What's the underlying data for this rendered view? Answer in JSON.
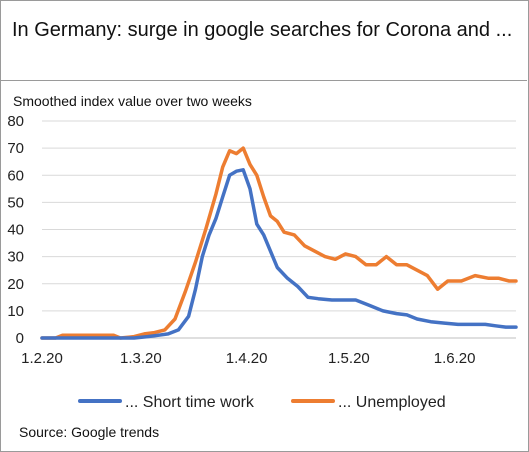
{
  "title": "In Germany: surge in google searches for Corona and ...",
  "source": "Source: Google trends",
  "chart_data": {
    "type": "line",
    "title": "In Germany: surge in google searches for Corona and ...",
    "subtitle": "Smoothed index value over two weeks",
    "xlabel": "",
    "ylabel": "",
    "ylim": [
      0,
      80
    ],
    "yticks": [
      0,
      10,
      20,
      30,
      40,
      50,
      60,
      70,
      80
    ],
    "xlim": [
      "2020-02-01",
      "2020-06-19"
    ],
    "xticks": [
      {
        "label": "1.2.20",
        "date": "2020-02-01"
      },
      {
        "label": "1.3.20",
        "date": "2020-03-01"
      },
      {
        "label": "1.4.20",
        "date": "2020-04-01"
      },
      {
        "label": "1.5.20",
        "date": "2020-05-01"
      },
      {
        "label": "1.6.20",
        "date": "2020-06-01"
      }
    ],
    "grid": true,
    "legend_position": "bottom",
    "series": [
      {
        "name": "... Short time work",
        "color": "#4472c4",
        "points": [
          [
            "2020-02-01",
            0
          ],
          [
            "2020-02-10",
            0
          ],
          [
            "2020-02-20",
            0
          ],
          [
            "2020-02-28",
            0
          ],
          [
            "2020-03-03",
            0.5
          ],
          [
            "2020-03-06",
            1
          ],
          [
            "2020-03-09",
            1.5
          ],
          [
            "2020-03-12",
            3
          ],
          [
            "2020-03-15",
            8
          ],
          [
            "2020-03-17",
            18
          ],
          [
            "2020-03-19",
            30
          ],
          [
            "2020-03-21",
            38
          ],
          [
            "2020-03-23",
            44
          ],
          [
            "2020-03-25",
            52
          ],
          [
            "2020-03-27",
            60
          ],
          [
            "2020-03-29",
            61.5
          ],
          [
            "2020-03-31",
            62
          ],
          [
            "2020-04-02",
            55
          ],
          [
            "2020-04-04",
            42
          ],
          [
            "2020-04-06",
            38
          ],
          [
            "2020-04-08",
            32
          ],
          [
            "2020-04-10",
            26
          ],
          [
            "2020-04-13",
            22
          ],
          [
            "2020-04-16",
            19
          ],
          [
            "2020-04-19",
            15
          ],
          [
            "2020-04-22",
            14.5
          ],
          [
            "2020-04-26",
            14
          ],
          [
            "2020-04-30",
            14
          ],
          [
            "2020-05-03",
            14
          ],
          [
            "2020-05-07",
            12
          ],
          [
            "2020-05-11",
            10
          ],
          [
            "2020-05-15",
            9
          ],
          [
            "2020-05-18",
            8.5
          ],
          [
            "2020-05-21",
            7
          ],
          [
            "2020-05-25",
            6
          ],
          [
            "2020-05-29",
            5.5
          ],
          [
            "2020-06-02",
            5
          ],
          [
            "2020-06-06",
            5
          ],
          [
            "2020-06-10",
            5
          ],
          [
            "2020-06-13",
            4.5
          ],
          [
            "2020-06-16",
            4
          ],
          [
            "2020-06-19",
            4
          ]
        ]
      },
      {
        "name": "... Unemployed",
        "color": "#ed7d31",
        "points": [
          [
            "2020-02-01",
            0
          ],
          [
            "2020-02-05",
            0
          ],
          [
            "2020-02-07",
            1
          ],
          [
            "2020-02-12",
            1
          ],
          [
            "2020-02-17",
            1
          ],
          [
            "2020-02-22",
            1
          ],
          [
            "2020-02-24",
            0
          ],
          [
            "2020-02-28",
            0.5
          ],
          [
            "2020-03-02",
            1.5
          ],
          [
            "2020-03-05",
            2
          ],
          [
            "2020-03-08",
            3
          ],
          [
            "2020-03-11",
            7
          ],
          [
            "2020-03-14",
            17
          ],
          [
            "2020-03-17",
            28
          ],
          [
            "2020-03-20",
            40
          ],
          [
            "2020-03-23",
            53
          ],
          [
            "2020-03-25",
            63
          ],
          [
            "2020-03-27",
            69
          ],
          [
            "2020-03-29",
            68
          ],
          [
            "2020-03-31",
            70
          ],
          [
            "2020-04-02",
            64
          ],
          [
            "2020-04-04",
            60
          ],
          [
            "2020-04-06",
            52
          ],
          [
            "2020-04-08",
            45
          ],
          [
            "2020-04-10",
            43
          ],
          [
            "2020-04-12",
            39
          ],
          [
            "2020-04-15",
            38
          ],
          [
            "2020-04-18",
            34
          ],
          [
            "2020-04-21",
            32
          ],
          [
            "2020-04-24",
            30
          ],
          [
            "2020-04-27",
            29
          ],
          [
            "2020-04-30",
            31
          ],
          [
            "2020-05-03",
            30
          ],
          [
            "2020-05-06",
            27
          ],
          [
            "2020-05-09",
            27
          ],
          [
            "2020-05-12",
            30
          ],
          [
            "2020-05-15",
            27
          ],
          [
            "2020-05-18",
            27
          ],
          [
            "2020-05-21",
            25
          ],
          [
            "2020-05-24",
            23
          ],
          [
            "2020-05-27",
            18
          ],
          [
            "2020-05-30",
            21
          ],
          [
            "2020-06-03",
            21
          ],
          [
            "2020-06-07",
            23
          ],
          [
            "2020-06-11",
            22
          ],
          [
            "2020-06-14",
            22
          ],
          [
            "2020-06-17",
            21
          ],
          [
            "2020-06-19",
            21
          ]
        ]
      }
    ]
  }
}
